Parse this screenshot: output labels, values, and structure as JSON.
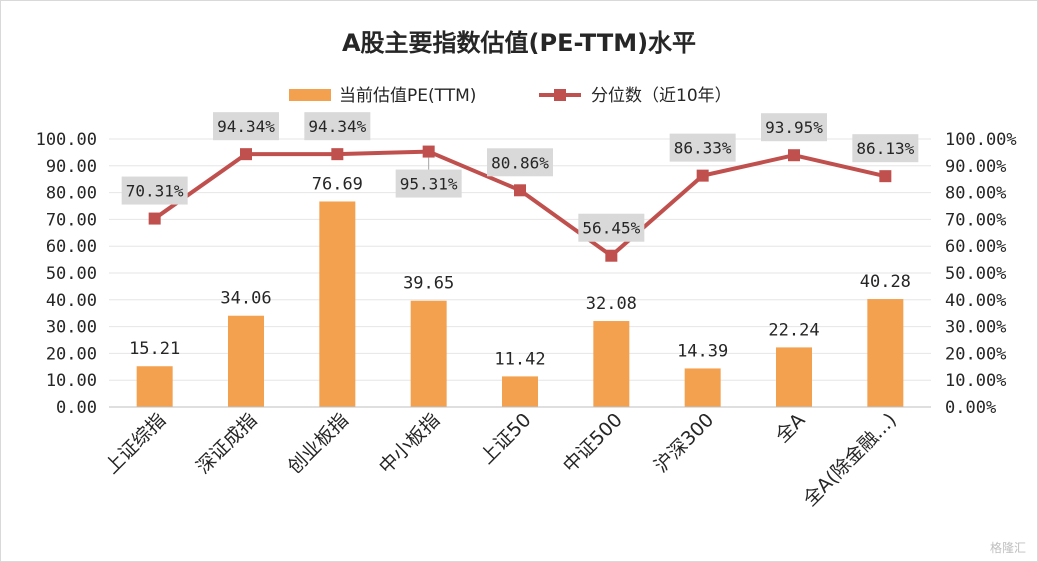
{
  "chart_data": {
    "type": "bar",
    "title": "A股主要指数估值(PE-TTM)水平",
    "categories": [
      "上证综指",
      "深证成指",
      "创业板指",
      "中小板指",
      "上证50",
      "中证500",
      "沪深300",
      "全A",
      "全A(除金融...)"
    ],
    "series": [
      {
        "name": "当前估值PE(TTM)",
        "type": "bar",
        "axis": "left",
        "values": [
          15.21,
          34.06,
          76.69,
          39.65,
          11.42,
          32.08,
          14.39,
          22.24,
          40.28
        ],
        "labels": [
          "15.21",
          "34.06",
          "76.69",
          "39.65",
          "11.42",
          "32.08",
          "14.39",
          "22.24",
          "40.28"
        ]
      },
      {
        "name": "分位数（近10年）",
        "type": "line",
        "axis": "right",
        "values": [
          70.31,
          94.34,
          94.34,
          95.31,
          80.86,
          56.45,
          86.33,
          93.95,
          86.13
        ],
        "labels": [
          "70.31%",
          "94.34%",
          "94.34%",
          "95.31%",
          "80.86%",
          "56.45%",
          "86.33%",
          "93.95%",
          "86.13%"
        ]
      }
    ],
    "y_left": {
      "ylim": [
        0,
        100
      ],
      "ticks": [
        "0.00",
        "10.00",
        "20.00",
        "30.00",
        "40.00",
        "50.00",
        "60.00",
        "70.00",
        "80.00",
        "90.00",
        "100.00"
      ]
    },
    "y_right": {
      "ylim": [
        0,
        100
      ],
      "ticks": [
        "0.00%",
        "10.00%",
        "20.00%",
        "30.00%",
        "40.00%",
        "50.00%",
        "60.00%",
        "70.00%",
        "80.00%",
        "90.00%",
        "100.00%"
      ]
    },
    "legend_position": "top",
    "grid": true,
    "colors": {
      "bar": "#f4a14f",
      "line": "#c0504d",
      "label_box": "#d9d9d9",
      "grid": "#e6e6e6",
      "text": "#262626"
    }
  },
  "watermark": "格隆汇"
}
